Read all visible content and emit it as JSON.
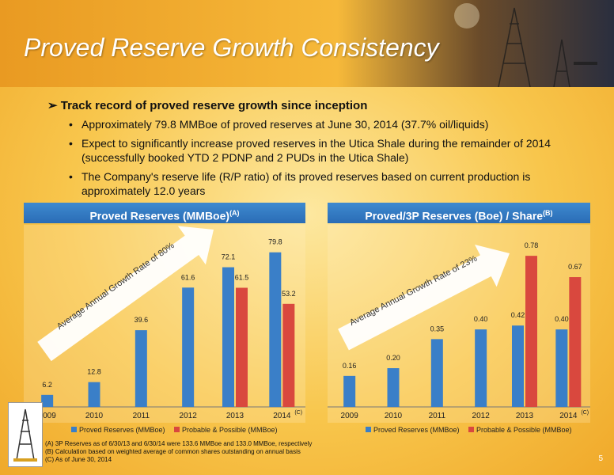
{
  "title": "Proved Reserve Growth Consistency",
  "bullets": {
    "main": "Track record of proved reserve growth since inception",
    "subs": [
      "Approximately 79.8 MMBoe of proved reserves at June 30, 2014 (37.7% oil/liquids)",
      "Expect to significantly increase proved reserves in the Utica Shale during the remainder of 2014 (successfully booked YTD 2 PDNP and 2 PUDs in the Utica Shale)",
      "The Company's reserve life (R/P ratio) of its proved reserves based on current production is approximately 12.0 years"
    ]
  },
  "colors": {
    "proved": "#3a7fc8",
    "probable": "#d9483e",
    "arrow": "#ffffff"
  },
  "chart_data": [
    {
      "type": "bar",
      "title": "Proved Reserves (MMBoe)",
      "title_note": "(A)",
      "annotation": "Average Annual Growth Rate of 80%",
      "categories": [
        "2009",
        "2010",
        "2011",
        "2012",
        "2013",
        "2014"
      ],
      "category_notes": [
        "",
        "",
        "",
        "",
        "",
        "(C)"
      ],
      "series": [
        {
          "name": "Proved Reserves (MMBoe)",
          "values": [
            6.2,
            12.8,
            39.6,
            61.6,
            72.1,
            79.8
          ]
        },
        {
          "name": "Probable & Possible (MMBoe)",
          "values": [
            null,
            null,
            null,
            null,
            61.5,
            53.2
          ]
        }
      ],
      "labels": [
        [
          "6.2",
          "12.8",
          "39.6",
          "61.6",
          "72.1",
          "79.8"
        ],
        [
          "",
          "",
          "",
          "",
          "61.5",
          "53.2"
        ]
      ],
      "ylim": [
        0,
        85
      ],
      "legend": "bottom"
    },
    {
      "type": "bar",
      "title": "Proved/3P Reserves (Boe) / Share",
      "title_note": "(B)",
      "annotation": "Average Annual Growth Rate of 23%",
      "categories": [
        "2009",
        "2010",
        "2011",
        "2012",
        "2013",
        "2014"
      ],
      "category_notes": [
        "",
        "",
        "",
        "",
        "",
        "(C)"
      ],
      "series": [
        {
          "name": "Proved Reserves (MMBoe)",
          "values": [
            0.16,
            0.2,
            0.35,
            0.4,
            0.42,
            0.4
          ]
        },
        {
          "name": "Probable & Possible (MMBoe)",
          "values": [
            null,
            null,
            null,
            null,
            0.78,
            0.67
          ]
        }
      ],
      "labels": [
        [
          "0.16",
          "0.20",
          "0.35",
          "0.40",
          "0.42",
          "0.40"
        ],
        [
          "",
          "",
          "",
          "",
          "0.78",
          "0.67"
        ]
      ],
      "ylim": [
        0,
        0.85
      ],
      "legend": "bottom"
    }
  ],
  "footnotes": [
    "(A) 3P Reserves as of 6/30/13 and 6/30/14 were 133.6 MMBoe and 133.0 MMBoe, respectively",
    "(B) Calculation based on weighted average of common shares outstanding on annual basis",
    "(C) As of June 30, 2014"
  ],
  "page_number": "5"
}
